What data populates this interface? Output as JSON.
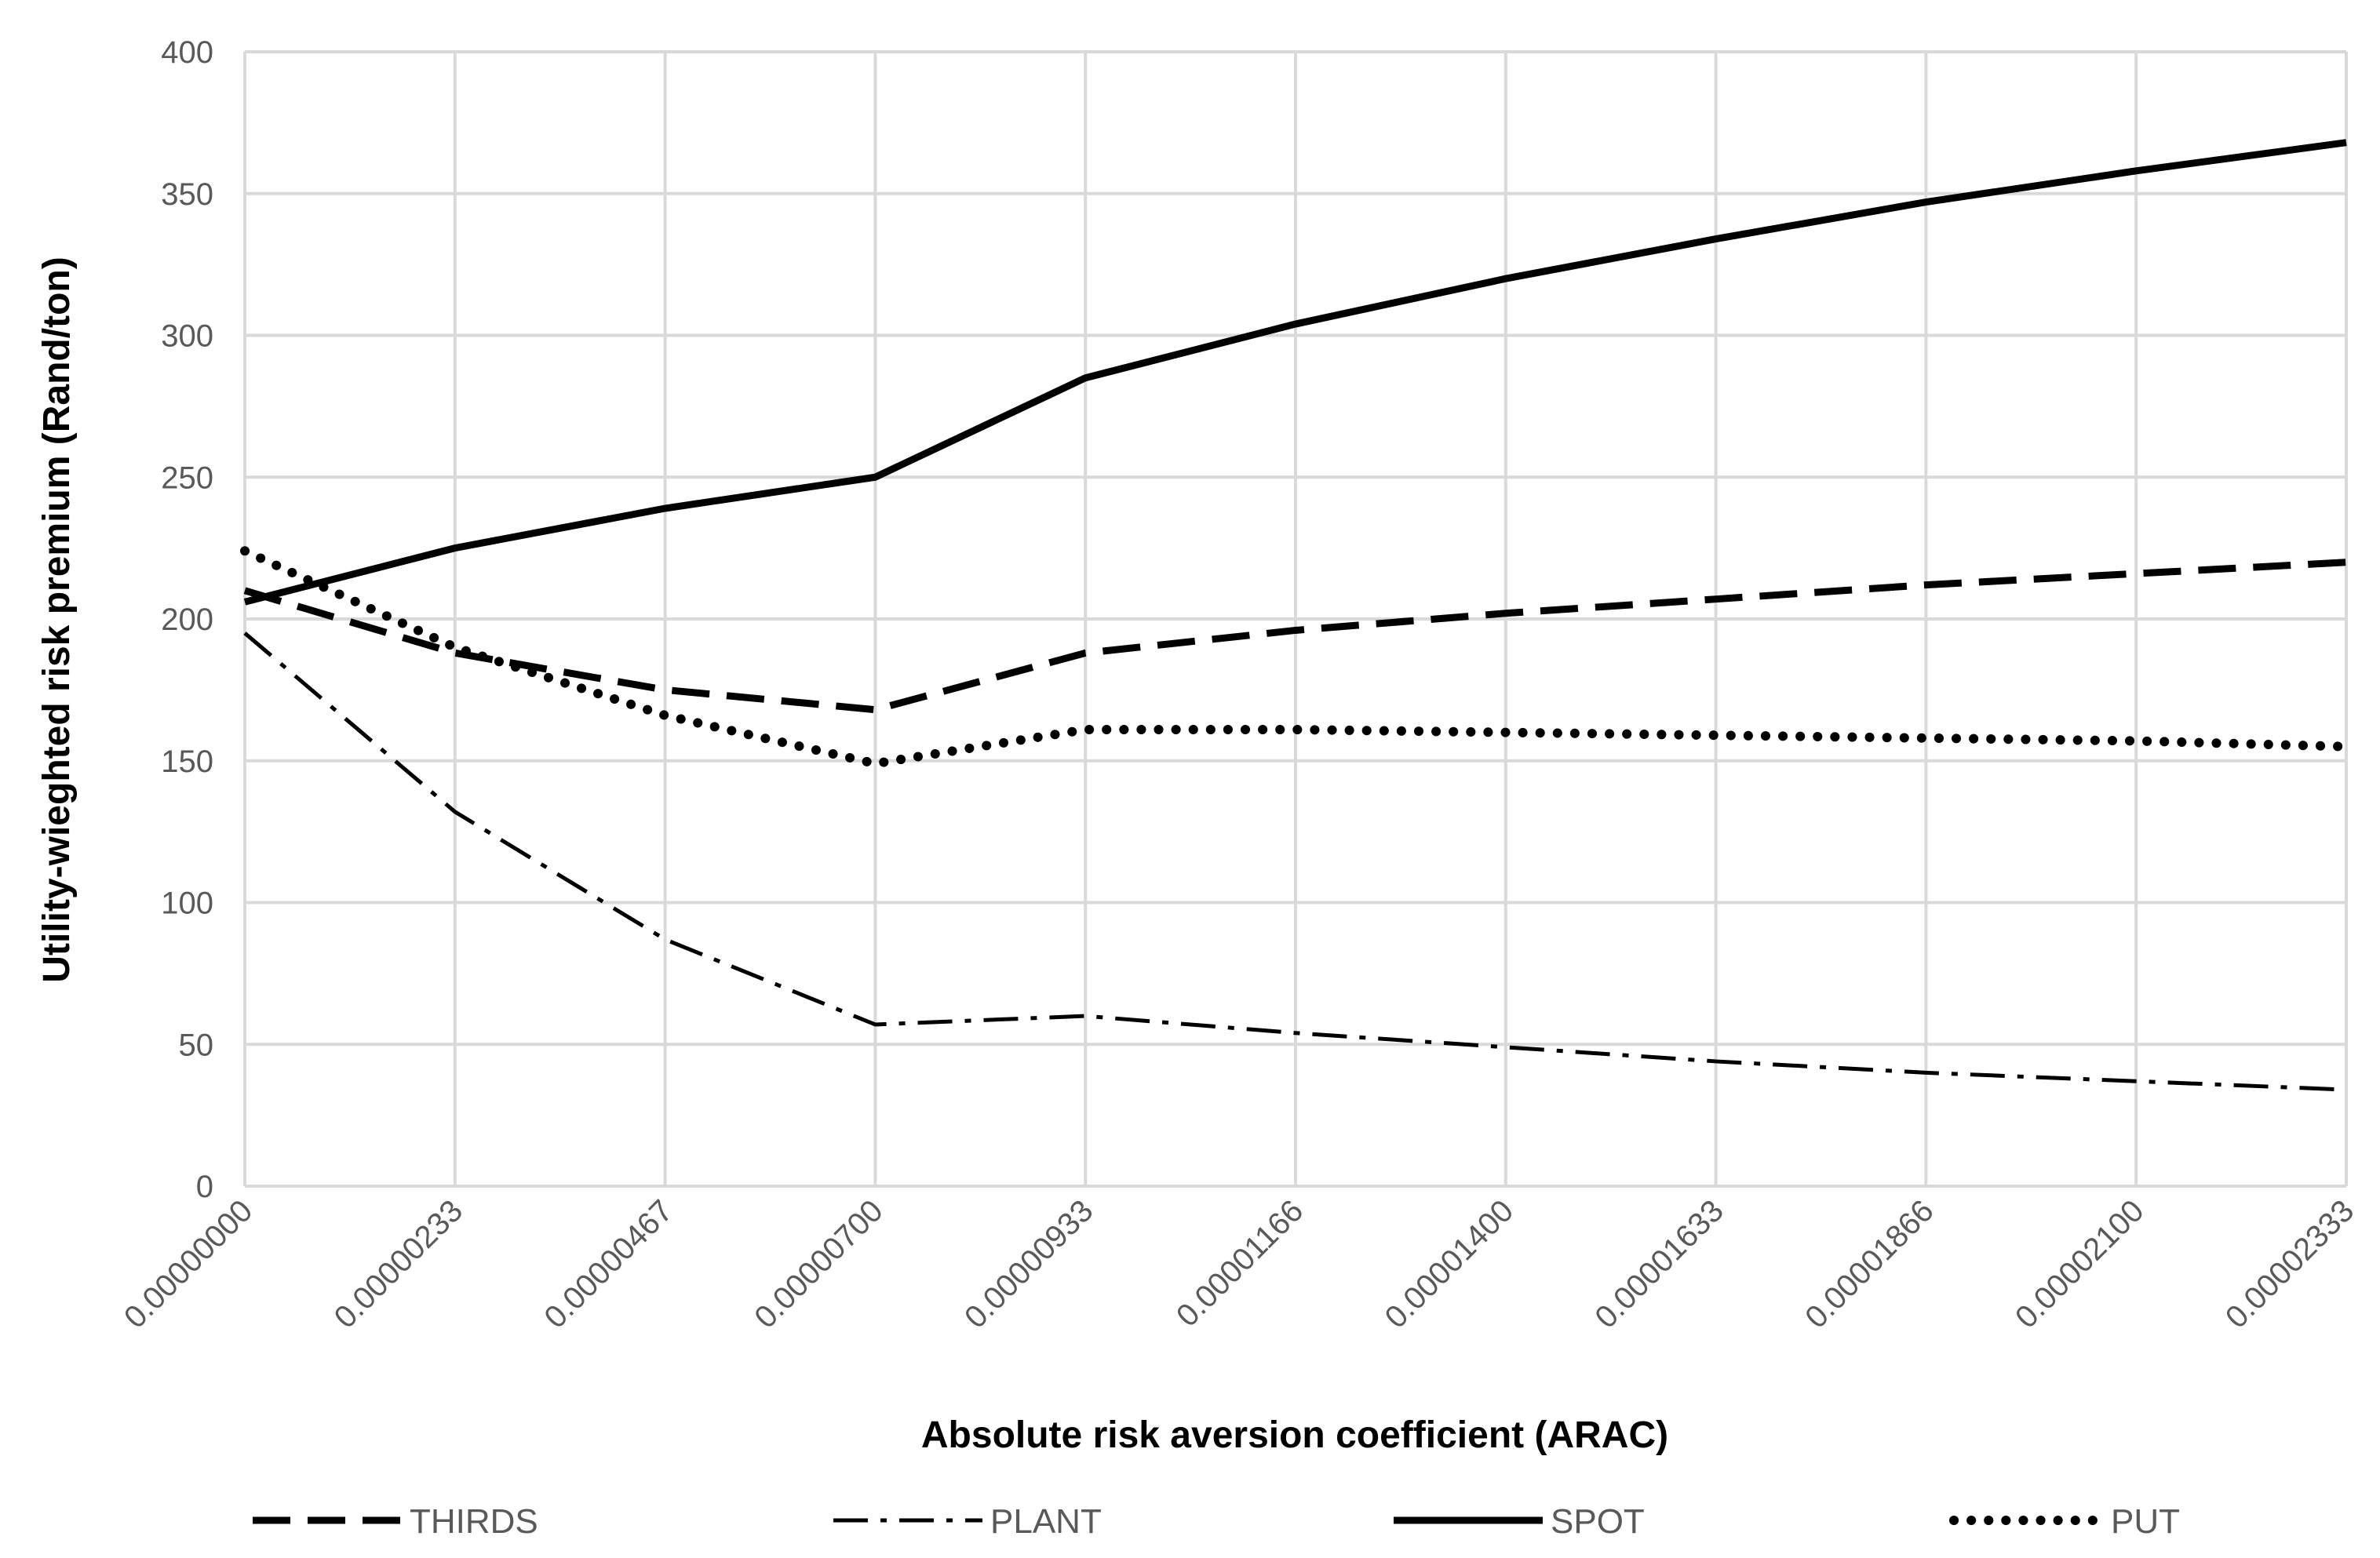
{
  "chart_data": {
    "type": "line",
    "title": "",
    "xlabel": "Absolute risk aversion coefficient (ARAC)",
    "ylabel": "Utility-wieghted risk premium (Rand/ton)",
    "ylim": [
      0,
      400
    ],
    "yticks": [
      "0",
      "50",
      "100",
      "150",
      "200",
      "250",
      "300",
      "350",
      "400"
    ],
    "categories": [
      "0.00000000",
      "0.00000233",
      "0.00000467",
      "0.00000700",
      "0.00000933",
      "0.00001166",
      "0.00001400",
      "0.00001633",
      "0.00001866",
      "0.00002100",
      "0.00002333"
    ],
    "grid": true,
    "legend_position": "bottom",
    "series": [
      {
        "name": "THIRDS",
        "style": "dash",
        "color": "#000000",
        "values": [
          210,
          188,
          175,
          168,
          188,
          196,
          202,
          207,
          212,
          216,
          220
        ]
      },
      {
        "name": "PLANT",
        "style": "dash-dot",
        "color": "#000000",
        "values": [
          195,
          132,
          87,
          57,
          60,
          54,
          49,
          44,
          40,
          37,
          34
        ]
      },
      {
        "name": "SPOT",
        "style": "solid",
        "color": "#000000",
        "values": [
          206,
          225,
          239,
          250,
          285,
          304,
          320,
          334,
          347,
          358,
          368
        ]
      },
      {
        "name": "PUT",
        "style": "dot",
        "color": "#000000",
        "values": [
          224,
          190,
          166,
          149,
          161,
          161,
          160,
          159,
          158,
          157,
          155
        ]
      }
    ]
  }
}
